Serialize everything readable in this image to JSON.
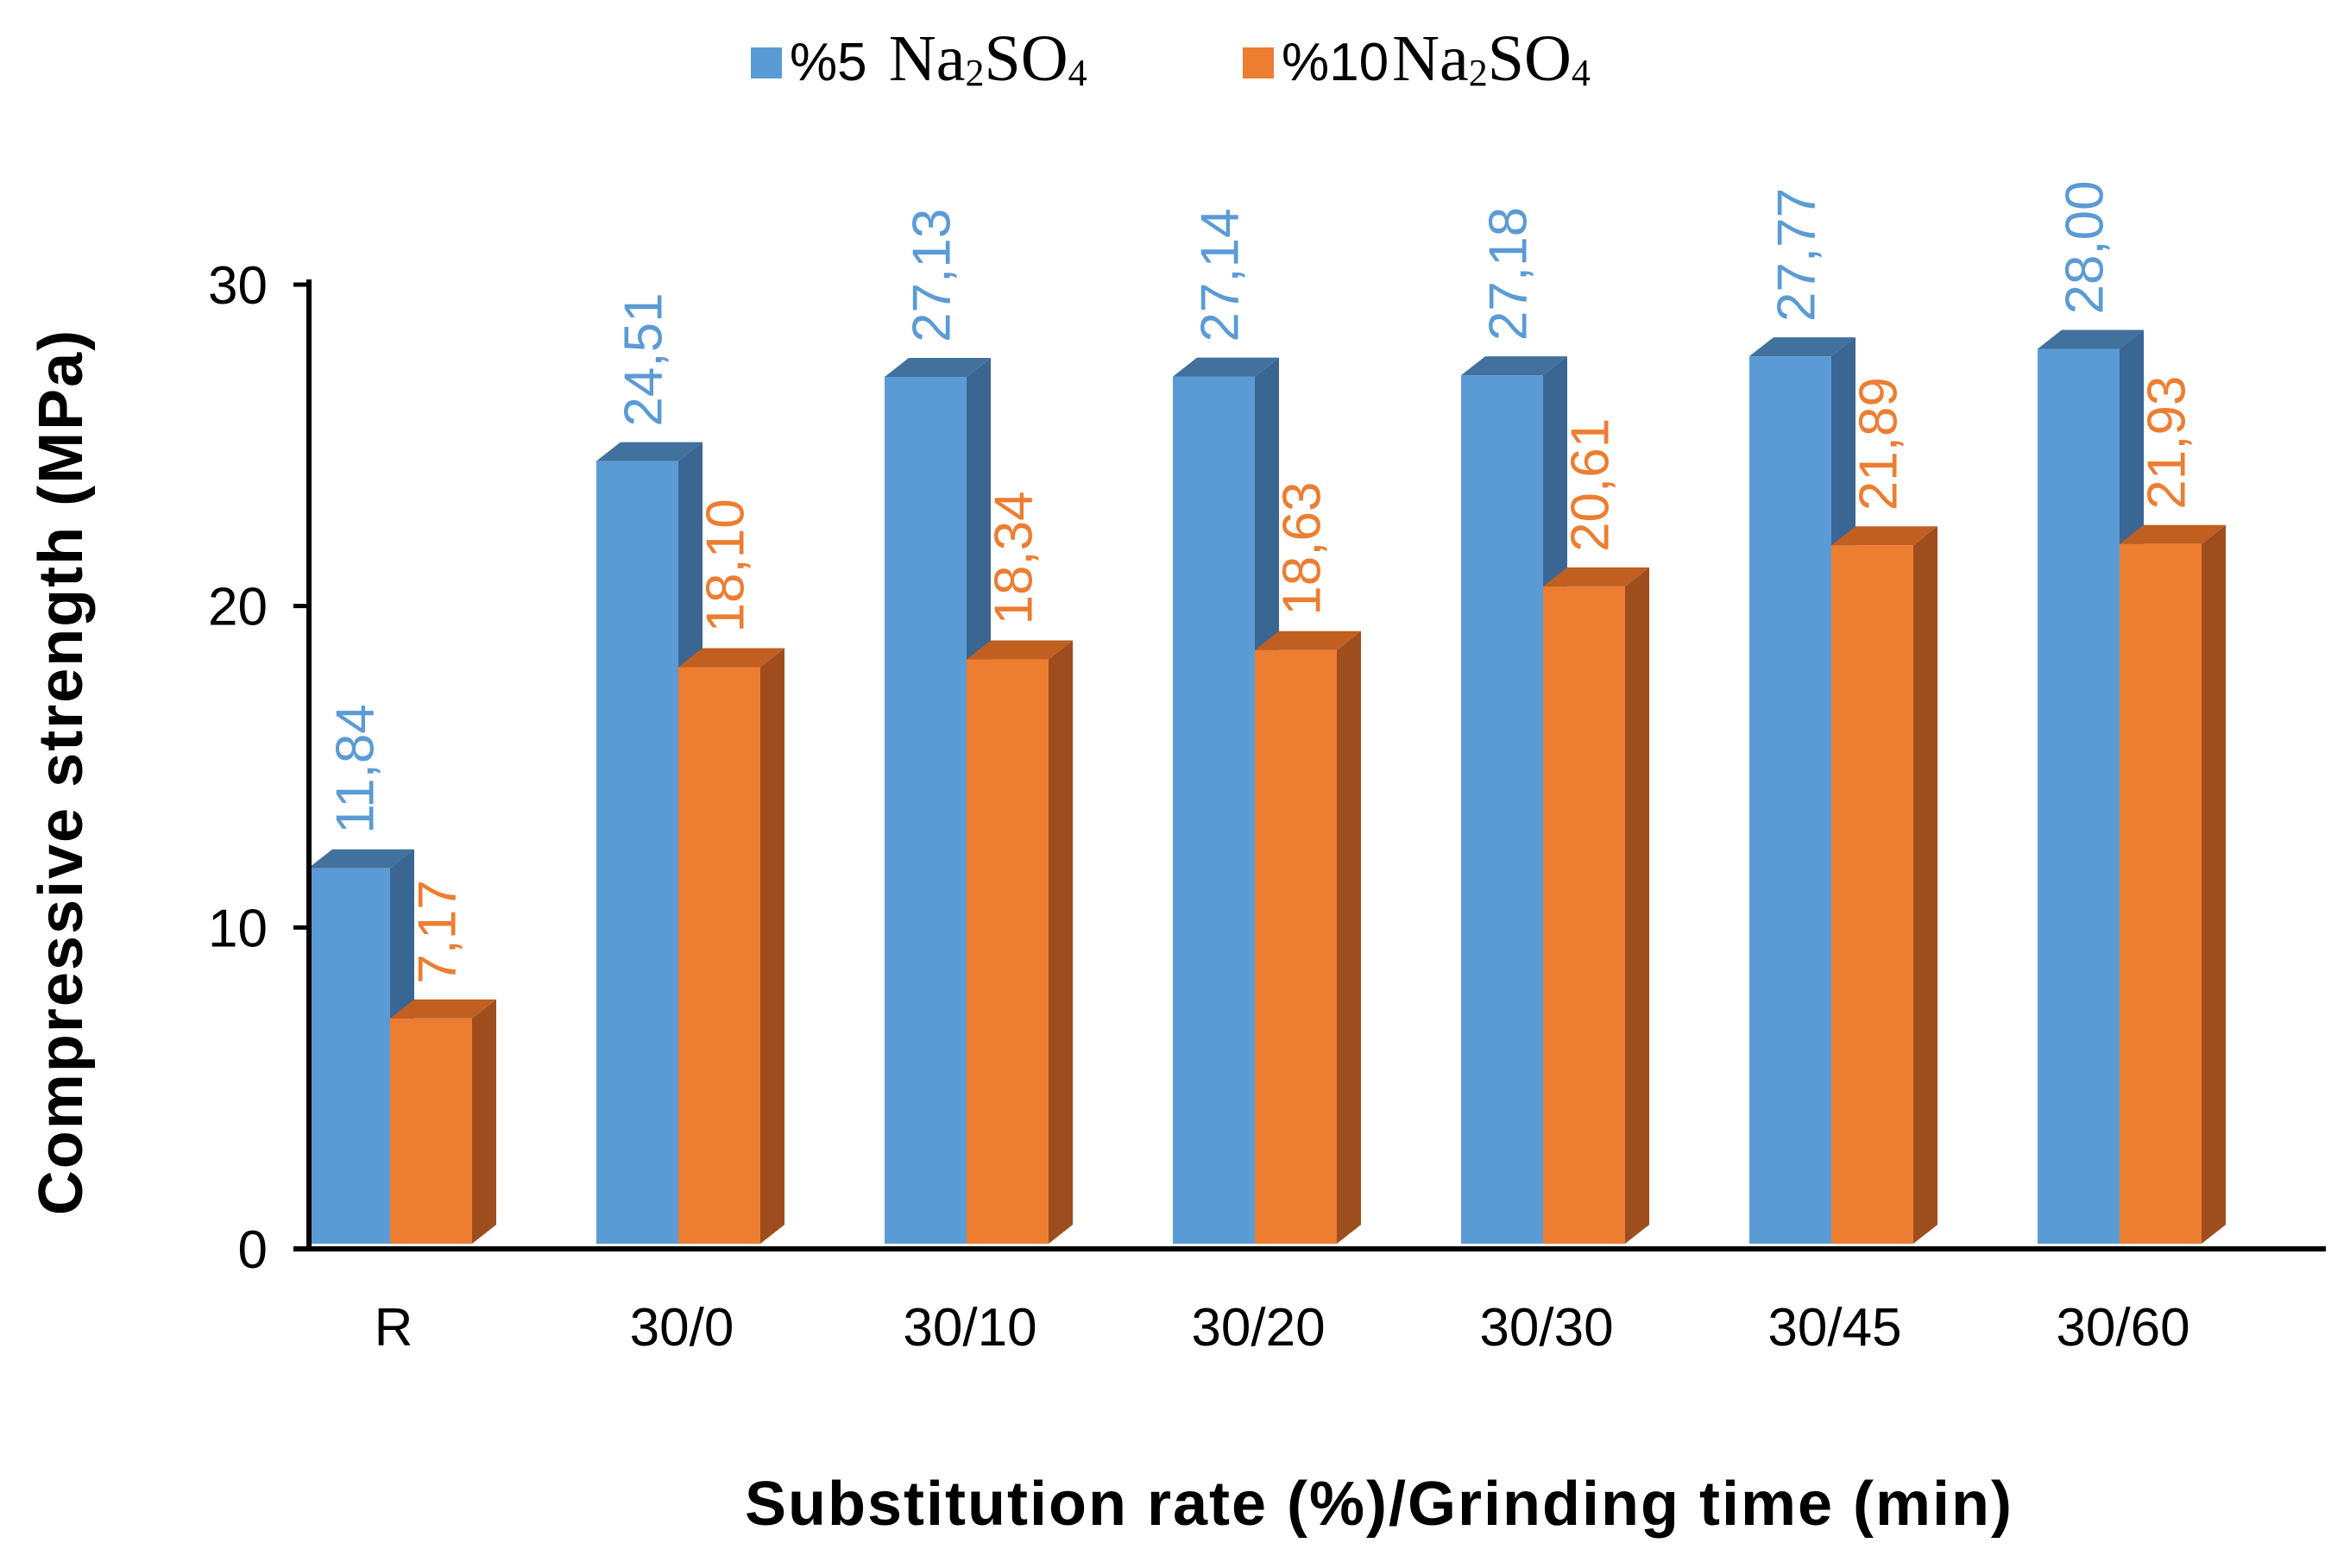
{
  "chart_data": {
    "type": "bar",
    "style": "3d-clustered-column",
    "title": "",
    "xlabel": "Substitution  rate (%)/Grinding  time (min)",
    "ylabel": "Compressive  strength  (MPa)",
    "ylim": [
      0,
      30
    ],
    "yticks": [
      "0",
      "10",
      "20",
      "30"
    ],
    "categories": [
      "R",
      "30/0",
      "30/10",
      "30/20",
      "30/30",
      "30/45",
      "30/60"
    ],
    "legend_position": "top",
    "series": [
      {
        "name": "%5 Na2SO4",
        "legend_prefix": "%5 ",
        "legend_formula_a": "Na",
        "legend_sub_a": "2",
        "legend_formula_b": "SO",
        "legend_sub_b": "4",
        "color": "#5b9bd5",
        "side_color": "#3a6694",
        "top_color": "#41719c",
        "label_color": "#5b9bd5",
        "values": [
          11.84,
          24.51,
          27.13,
          27.14,
          27.18,
          27.77,
          28.0
        ],
        "labels": [
          "11,84",
          "24,51",
          "27,13",
          "27,14",
          "27,18",
          "27,77",
          "28,00"
        ]
      },
      {
        "name": "%10 Na2SO4",
        "legend_prefix": "%10",
        "legend_formula_a": "Na",
        "legend_sub_a": "2",
        "legend_formula_b": "SO",
        "legend_sub_b": "4",
        "color": "#ed7d31",
        "side_color": "#9e4e1e",
        "top_color": "#c05f20",
        "label_color": "#ed7d31",
        "values": [
          7.17,
          18.1,
          18.34,
          18.63,
          20.61,
          21.89,
          21.93
        ],
        "labels": [
          "7,17",
          "18,10",
          "18,34",
          "18,63",
          "20,61",
          "21,89",
          "21,93"
        ]
      }
    ]
  }
}
